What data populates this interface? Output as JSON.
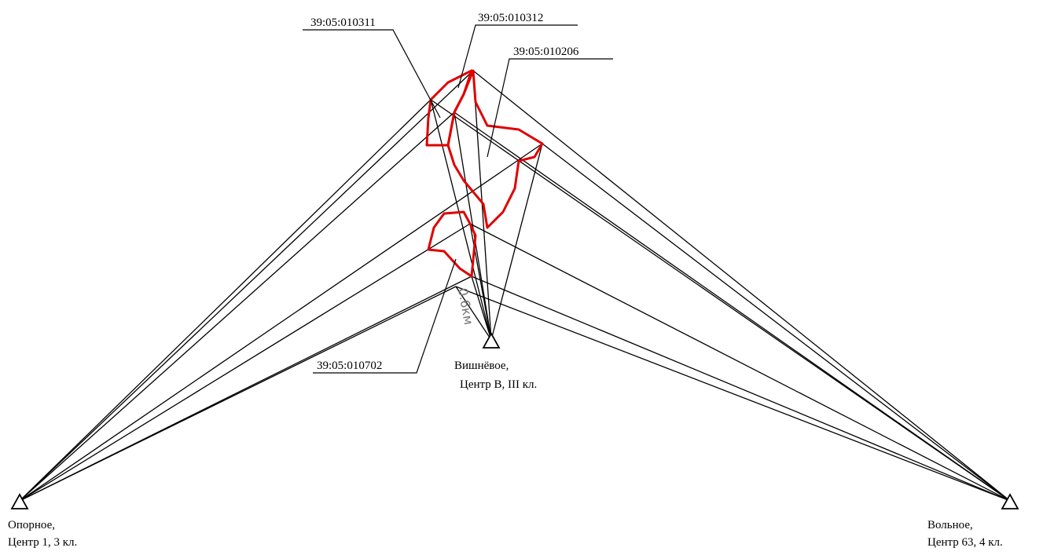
{
  "parcels": [
    {
      "label": "39:05:010311"
    },
    {
      "label": "39:05:010312"
    },
    {
      "label": "39:05:010206"
    },
    {
      "label": "39:05:010702"
    }
  ],
  "stations": [
    {
      "name": "Опорное,",
      "center": "Центр 1, 3 кл."
    },
    {
      "name": "Вишнёвое,",
      "center": "Центр В, III кл."
    },
    {
      "name": "Вольное,",
      "center": "Центр 63, 4 кл."
    }
  ],
  "scale_label": "0.6км"
}
